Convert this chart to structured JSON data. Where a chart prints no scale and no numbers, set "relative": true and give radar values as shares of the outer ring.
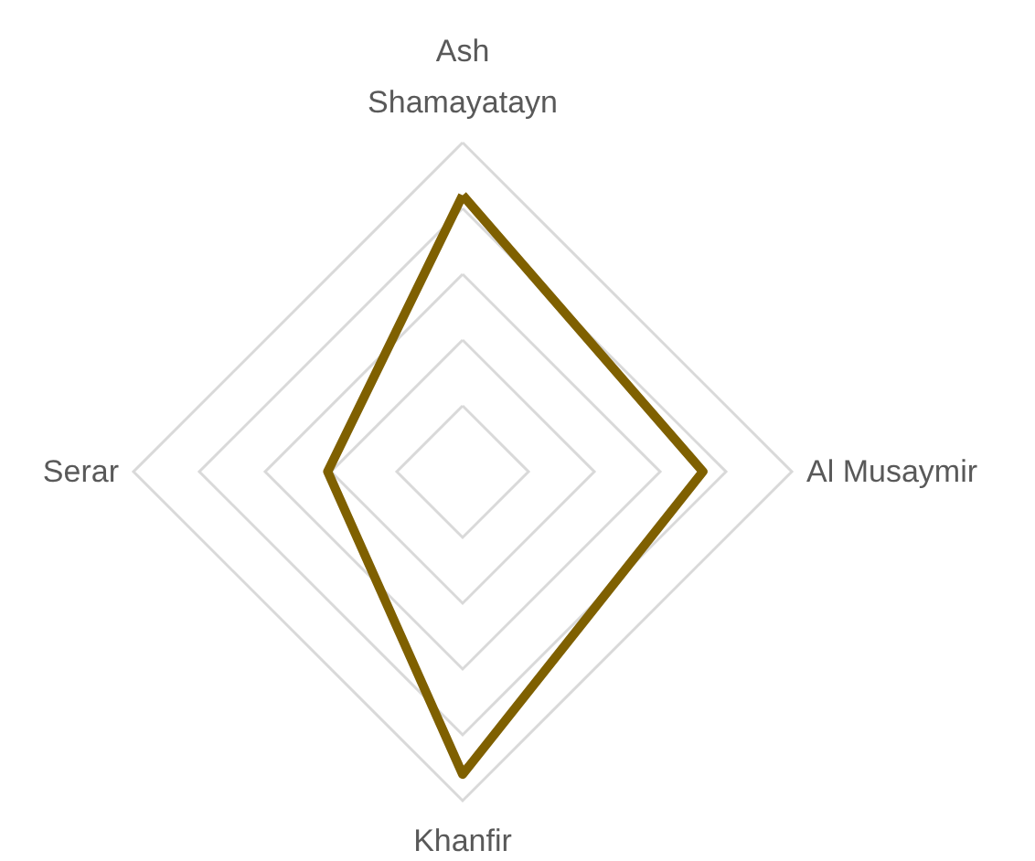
{
  "chart_data": {
    "type": "radar",
    "relative": true,
    "categories": [
      "Ash Shamayatayn",
      "Al Musaymir",
      "Khanfir",
      "Serar"
    ],
    "series": [
      {
        "color": "#7f6000",
        "values": [
          0.84,
          0.73,
          0.92,
          0.41
        ]
      }
    ],
    "marker": "none",
    "line_style": "solid"
  }
}
